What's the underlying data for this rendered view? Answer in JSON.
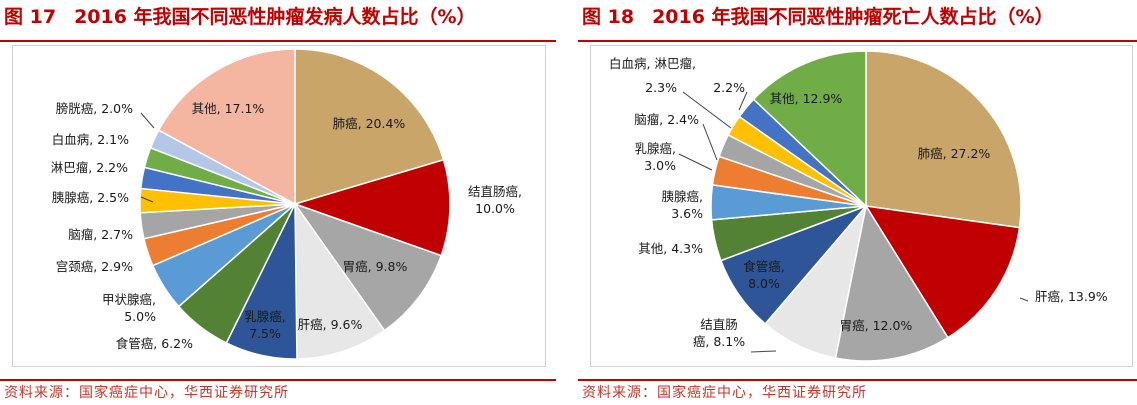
{
  "panels": [
    {
      "figure_no": "图 17",
      "title": "2016 年我国不同恶性肿瘤发病人数占比（%）",
      "source": "资料来源：国家癌症中心，华西证券研究所"
    },
    {
      "figure_no": "图 18",
      "title": "2016 年我国不同恶性肿瘤死亡人数占比（%）",
      "source": "资料来源：国家癌症中心，华西证券研究所"
    }
  ],
  "chart_data": [
    {
      "type": "pie",
      "title": "2016 年我国不同恶性肿瘤发病人数占比（%）",
      "start": "12 o'clock",
      "direction": "clockwise",
      "slices": [
        {
          "label": "肺癌",
          "value": 20.4,
          "text": "肺癌, 20.4%",
          "color": "#c9a56a"
        },
        {
          "label": "结直肠癌",
          "value": 10.0,
          "text": "结直肠癌,\n10.0%",
          "color": "#c00000"
        },
        {
          "label": "胃癌",
          "value": 9.8,
          "text": "胃癌, 9.8%",
          "color": "#a6a6a6"
        },
        {
          "label": "肝癌",
          "value": 9.6,
          "text": "肝癌, 9.6%",
          "color": "#e7e7e7"
        },
        {
          "label": "乳腺癌",
          "value": 7.5,
          "text": "乳腺癌,\n7.5%",
          "color": "#2e5597"
        },
        {
          "label": "食管癌",
          "value": 6.2,
          "text": "食管癌, 6.2%",
          "color": "#548235"
        },
        {
          "label": "甲状腺癌",
          "value": 5.0,
          "text": "甲状腺癌,\n5.0%",
          "color": "#5b9bd5"
        },
        {
          "label": "宫颈癌",
          "value": 2.9,
          "text": "宫颈癌, 2.9%",
          "color": "#ed7d31"
        },
        {
          "label": "脑瘤",
          "value": 2.7,
          "text": "脑瘤, 2.7%",
          "color": "#a5a5a5"
        },
        {
          "label": "胰腺癌",
          "value": 2.5,
          "text": "胰腺癌, 2.5%",
          "color": "#ffc000"
        },
        {
          "label": "淋巴瘤",
          "value": 2.2,
          "text": "淋巴瘤, 2.2%",
          "color": "#4472c4"
        },
        {
          "label": "白血病",
          "value": 2.1,
          "text": "白血病, 2.1%",
          "color": "#70ad47"
        },
        {
          "label": "膀胱癌",
          "value": 2.0,
          "text": "膀胱癌, 2.0%",
          "color": "#b4c7e7"
        },
        {
          "label": "其他",
          "value": 17.1,
          "text": "其他, 17.1%",
          "color": "#f4b6a0"
        }
      ]
    },
    {
      "type": "pie",
      "title": "2016 年我国不同恶性肿瘤死亡人数占比（%）",
      "start": "12 o'clock",
      "direction": "clockwise",
      "slices": [
        {
          "label": "肺癌",
          "value": 27.2,
          "text": "肺癌, 27.2%",
          "color": "#c9a56a"
        },
        {
          "label": "肝癌",
          "value": 13.9,
          "text": "肝癌, 13.9%",
          "color": "#c00000"
        },
        {
          "label": "胃癌",
          "value": 12.0,
          "text": "胃癌, 12.0%",
          "color": "#a6a6a6"
        },
        {
          "label": "结直肠癌",
          "value": 8.1,
          "text": "结直肠\n癌, 8.1%",
          "color": "#e7e7e7"
        },
        {
          "label": "食管癌",
          "value": 8.0,
          "text": "食管癌,\n8.0%",
          "color": "#2e5597"
        },
        {
          "label": "其他",
          "value": 4.3,
          "text": "其他, 4.3%",
          "color": "#548235"
        },
        {
          "label": "胰腺癌",
          "value": 3.6,
          "text": "胰腺癌,\n3.6%",
          "color": "#5b9bd5"
        },
        {
          "label": "乳腺癌",
          "value": 3.0,
          "text": "乳腺癌,\n3.0%",
          "color": "#ed7d31"
        },
        {
          "label": "脑瘤",
          "value": 2.4,
          "text": "脑瘤, 2.4%",
          "color": "#a5a5a5"
        },
        {
          "label": "淋巴瘤",
          "value": 2.2,
          "text": "2.2%",
          "color": "#ffc000"
        },
        {
          "label": "白血病",
          "value": 2.3,
          "text": "2.3%",
          "color": "#4472c4"
        },
        {
          "label": "其他",
          "value": 12.9,
          "text": "其他, 12.9%",
          "color": "#70ad47"
        }
      ],
      "extra_labels": [
        "白血病, 淋巴瘤,"
      ]
    }
  ]
}
